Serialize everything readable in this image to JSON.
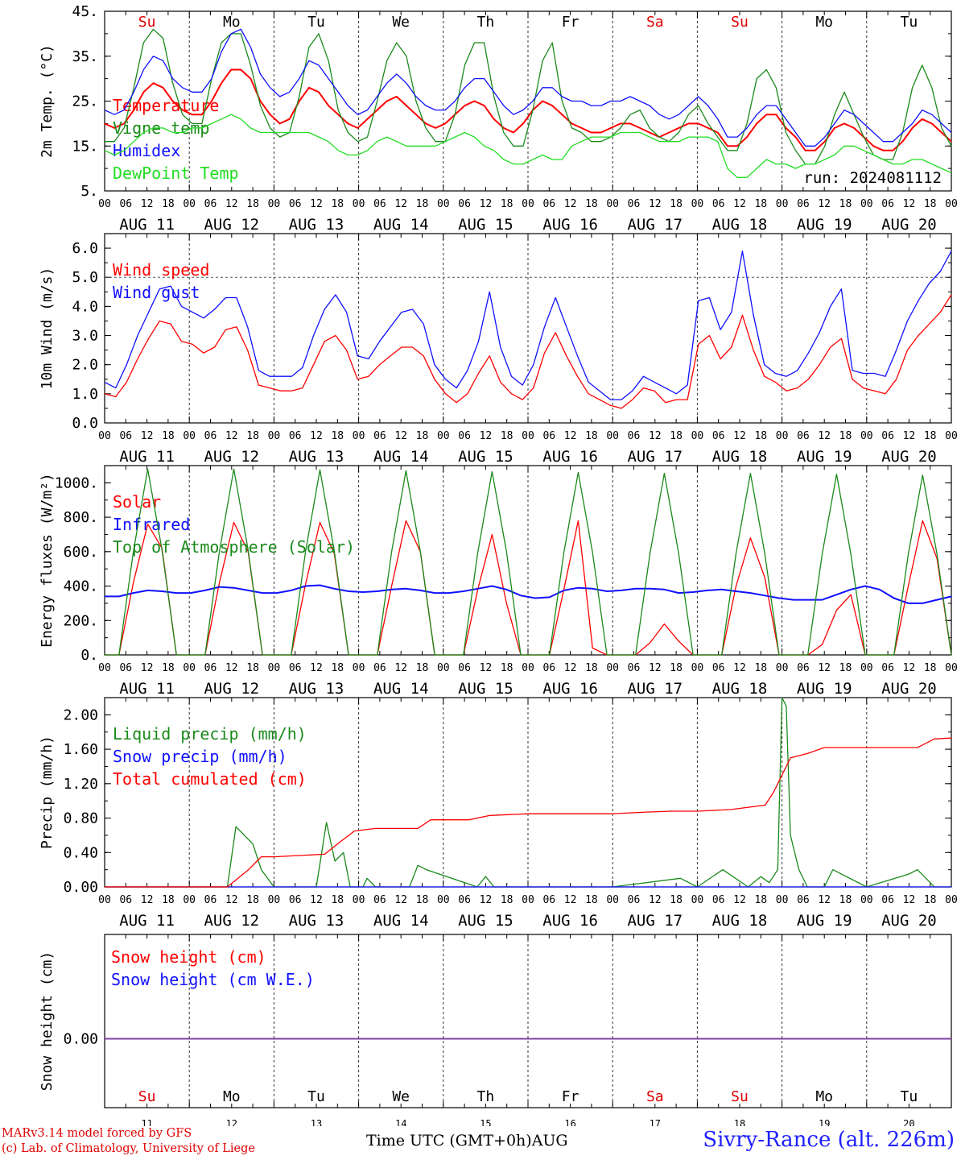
{
  "footer": {
    "model": "MARv3.14 model forced by GFS",
    "copyright": "(c) Lab. of Climatology, University of Liege",
    "axis_label": "Time UTC (GMT+0h)AUG",
    "station": "Sivry-Rance (alt. 226m)"
  },
  "days": [
    "Su",
    "Mo",
    "Tu",
    "We",
    "Th",
    "Fr",
    "Sa",
    "Su",
    "Mo",
    "Tu"
  ],
  "day_colors": [
    "#e00000",
    "#000000",
    "#000000",
    "#000000",
    "#000000",
    "#000000",
    "#e00000",
    "#e00000",
    "#000000",
    "#000000"
  ],
  "date_labels": [
    "AUG 11",
    "AUG 12",
    "AUG 13",
    "AUG 14",
    "AUG 15",
    "AUG 16",
    "AUG 17",
    "AUG 18",
    "AUG 19",
    "AUG 20"
  ],
  "day_numbers": [
    "11",
    "12",
    "13",
    "14",
    "15",
    "16",
    "17",
    "18",
    "19",
    "20"
  ],
  "hour_ticks": [
    "00",
    "06",
    "12",
    "18"
  ],
  "colors": {
    "red": "#ff0000",
    "green": "#1a8a1a",
    "blue": "#1010ff",
    "light_green": "#22dd22",
    "purple": "#8040a0"
  },
  "chart_data": [
    {
      "type": "line",
      "ylabel": "2m Temp. (°C)",
      "ylim": [
        5,
        45
      ],
      "yticks": [
        "5.",
        "15.",
        "25.",
        "35.",
        "45."
      ],
      "annotation": "run: 2024081112",
      "grid": "day separators dashed",
      "series": [
        {
          "name": "Temperature",
          "color": "red",
          "values": [
            20,
            19,
            20,
            23,
            27,
            29,
            28,
            25,
            23,
            22,
            22,
            25,
            29,
            32,
            32,
            30,
            25,
            22,
            20,
            21,
            25,
            28,
            27,
            24,
            22,
            20,
            19,
            21,
            23,
            25,
            26,
            24,
            22,
            20,
            19,
            20,
            22,
            24,
            25,
            24,
            21,
            19,
            18,
            20,
            23,
            25,
            24,
            22,
            20,
            19,
            18,
            18,
            19,
            20,
            20,
            19,
            18,
            17,
            18,
            19,
            20,
            20,
            19,
            18,
            15,
            15,
            17,
            20,
            22,
            22,
            19,
            17,
            14,
            14,
            16,
            19,
            20,
            19,
            17,
            15,
            14,
            14,
            16,
            19,
            21,
            20,
            18,
            16
          ]
        },
        {
          "name": "Vigne temp",
          "color": "green",
          "values": [
            16,
            16,
            19,
            28,
            38,
            41,
            39,
            29,
            22,
            20,
            20,
            30,
            38,
            40,
            40,
            33,
            24,
            19,
            17,
            18,
            26,
            37,
            40,
            34,
            23,
            18,
            16,
            17,
            25,
            34,
            38,
            35,
            25,
            19,
            16,
            16,
            22,
            33,
            38,
            38,
            26,
            18,
            15,
            15,
            23,
            34,
            38,
            25,
            19,
            18,
            16,
            16,
            17,
            19,
            22,
            23,
            19,
            17,
            16,
            18,
            22,
            24,
            20,
            17,
            14,
            14,
            20,
            30,
            32,
            28,
            18,
            14,
            11,
            11,
            15,
            22,
            27,
            22,
            17,
            13,
            12,
            12,
            18,
            28,
            33,
            28,
            19,
            15
          ]
        },
        {
          "name": "Humidex",
          "color": "blue",
          "values": [
            23,
            22,
            23,
            27,
            32,
            35,
            34,
            30,
            28,
            27,
            27,
            30,
            36,
            40,
            41,
            37,
            31,
            28,
            26,
            27,
            30,
            34,
            33,
            30,
            27,
            24,
            22,
            23,
            26,
            29,
            31,
            29,
            26,
            24,
            23,
            23,
            25,
            28,
            30,
            30,
            27,
            24,
            22,
            23,
            25,
            28,
            28,
            26,
            25,
            25,
            24,
            24,
            25,
            25,
            26,
            25,
            24,
            22,
            21,
            22,
            24,
            26,
            24,
            21,
            17,
            17,
            19,
            22,
            24,
            24,
            21,
            18,
            15,
            15,
            17,
            20,
            23,
            22,
            20,
            18,
            16,
            16,
            18,
            20,
            23,
            22,
            20,
            18
          ]
        },
        {
          "name": "DewPoint Temp",
          "color": "light_green",
          "values": [
            14,
            13,
            14,
            16,
            18,
            19,
            19,
            18,
            18,
            19,
            19,
            20,
            21,
            22,
            21,
            19,
            18,
            18,
            18,
            18,
            18,
            18,
            17,
            16,
            14,
            13,
            13,
            14,
            16,
            17,
            16,
            15,
            15,
            15,
            15,
            16,
            17,
            18,
            17,
            15,
            14,
            12,
            11,
            11,
            12,
            13,
            12,
            12,
            15,
            16,
            17,
            17,
            17,
            18,
            18,
            18,
            17,
            16,
            16,
            16,
            17,
            17,
            17,
            16,
            10,
            8,
            8,
            10,
            12,
            11,
            11,
            10,
            11,
            11,
            12,
            13,
            15,
            15,
            14,
            13,
            12,
            11,
            11,
            12,
            12,
            11,
            10,
            9
          ]
        }
      ]
    },
    {
      "type": "line",
      "ylabel": "10m Wind (m/s)",
      "ylim": [
        0,
        6.5
      ],
      "yticks": [
        "0.0",
        "1.0",
        "2.0",
        "3.0",
        "4.0",
        "5.0",
        "6.0"
      ],
      "reference_line": 5.0,
      "series": [
        {
          "name": "Wind speed",
          "color": "red",
          "values": [
            1.0,
            0.9,
            1.4,
            2.2,
            2.9,
            3.5,
            3.4,
            2.8,
            2.7,
            2.4,
            2.6,
            3.2,
            3.3,
            2.5,
            1.3,
            1.2,
            1.1,
            1.1,
            1.2,
            2.0,
            2.8,
            3.0,
            2.5,
            1.5,
            1.6,
            2.0,
            2.3,
            2.6,
            2.6,
            2.3,
            1.5,
            1.0,
            0.7,
            1.0,
            1.7,
            2.3,
            1.4,
            1.0,
            0.8,
            1.2,
            2.4,
            3.1,
            2.3,
            1.6,
            1.0,
            0.8,
            0.6,
            0.5,
            0.8,
            1.2,
            1.1,
            0.7,
            0.8,
            0.8,
            2.7,
            3.0,
            2.2,
            2.6,
            3.7,
            2.5,
            1.6,
            1.4,
            1.1,
            1.2,
            1.5,
            2.0,
            2.6,
            2.9,
            1.5,
            1.2,
            1.1,
            1.0,
            1.5,
            2.5,
            3.0,
            3.4,
            3.8,
            4.4
          ]
        },
        {
          "name": "Wind gust",
          "color": "blue",
          "values": [
            1.4,
            1.2,
            2.0,
            3.0,
            3.8,
            4.6,
            4.7,
            4.0,
            3.8,
            3.6,
            3.9,
            4.3,
            4.3,
            3.3,
            1.8,
            1.6,
            1.6,
            1.6,
            1.9,
            3.0,
            3.9,
            4.4,
            3.8,
            2.3,
            2.2,
            2.8,
            3.3,
            3.8,
            3.9,
            3.4,
            2.0,
            1.5,
            1.2,
            1.8,
            2.8,
            4.5,
            2.6,
            1.6,
            1.3,
            2.0,
            3.3,
            4.3,
            3.3,
            2.3,
            1.4,
            1.1,
            0.8,
            0.8,
            1.1,
            1.6,
            1.4,
            1.2,
            1.0,
            1.3,
            4.2,
            4.3,
            3.2,
            3.8,
            5.9,
            3.7,
            2.0,
            1.7,
            1.6,
            1.8,
            2.4,
            3.1,
            4.0,
            4.6,
            1.8,
            1.7,
            1.7,
            1.6,
            2.5,
            3.5,
            4.2,
            4.8,
            5.2,
            5.9
          ]
        }
      ]
    },
    {
      "type": "line",
      "ylabel": "Energy fluxes (W/m²)",
      "ylim": [
        0,
        1100
      ],
      "yticks": [
        "0.",
        "200.",
        "400.",
        "600.",
        "800.",
        "1000."
      ],
      "series": [
        {
          "name": "Solar",
          "color": "red",
          "values": [
            0,
            0,
            420,
            760,
            620,
            0,
            0,
            0,
            420,
            770,
            600,
            0,
            0,
            0,
            410,
            770,
            590,
            0,
            0,
            0,
            400,
            780,
            600,
            0,
            0,
            0,
            380,
            700,
            300,
            0,
            0,
            0,
            380,
            780,
            40,
            0,
            0,
            0,
            70,
            180,
            80,
            0,
            0,
            0,
            400,
            680,
            450,
            0,
            0,
            0,
            60,
            260,
            350,
            0,
            0,
            0,
            400,
            780,
            560,
            0
          ]
        },
        {
          "name": "Infrared",
          "color": "blue",
          "values": [
            340,
            340,
            360,
            375,
            370,
            360,
            360,
            375,
            395,
            390,
            375,
            360,
            360,
            375,
            400,
            405,
            385,
            370,
            365,
            370,
            380,
            385,
            375,
            360,
            360,
            370,
            385,
            400,
            380,
            345,
            330,
            335,
            375,
            390,
            385,
            370,
            375,
            385,
            385,
            380,
            360,
            365,
            375,
            380,
            370,
            360,
            345,
            330,
            320,
            320,
            320,
            350,
            380,
            400,
            380,
            330,
            300,
            300,
            320,
            340
          ]
        },
        {
          "name": "Top of Atmosphere (Solar)",
          "color": "green",
          "values": [
            0,
            0,
            600,
            1080,
            610,
            0,
            0,
            0,
            600,
            1080,
            610,
            0,
            0,
            0,
            600,
            1075,
            605,
            0,
            0,
            0,
            600,
            1070,
            600,
            0,
            0,
            0,
            595,
            1065,
            600,
            0,
            0,
            0,
            595,
            1060,
            595,
            0,
            0,
            0,
            590,
            1055,
            590,
            0,
            0,
            0,
            590,
            1055,
            590,
            0,
            0,
            0,
            585,
            1050,
            585,
            0,
            0,
            0,
            585,
            1045,
            585,
            0
          ]
        }
      ]
    },
    {
      "type": "line",
      "ylabel": "Precip (mm/h)",
      "ylim": [
        0,
        2.2
      ],
      "yticks": [
        "0.00",
        "0.40",
        "0.80",
        "1.20",
        "1.60",
        "2.00"
      ],
      "series": [
        {
          "name": "Liquid precip (mm/h)",
          "color": "green",
          "x": [
            0,
            1,
            1.45,
            1.55,
            1.65,
            1.75,
            1.85,
            2.0,
            2.5,
            2.62,
            2.72,
            2.82,
            2.9,
            3.05,
            3.1,
            3.2,
            3.6,
            3.7,
            3.8,
            4.4,
            4.5,
            4.6,
            5.0,
            6.0,
            6.8,
            7.0,
            7.3,
            7.6,
            7.75,
            7.85,
            7.95,
            8.0,
            8.05,
            8.1,
            8.2,
            8.3,
            8.5,
            8.6,
            9.0,
            9.5,
            9.6,
            9.7,
            9.8,
            9.9,
            10.0
          ],
          "values": [
            0,
            0,
            0,
            0.7,
            0.6,
            0.5,
            0.2,
            0,
            0,
            0.75,
            0.3,
            0.4,
            0,
            0,
            0.1,
            0,
            0,
            0.25,
            0.2,
            0,
            0.12,
            0,
            0,
            0,
            0.1,
            0,
            0.2,
            0,
            0.12,
            0.05,
            0.2,
            2.2,
            2.1,
            0.6,
            0.2,
            0,
            0,
            0.2,
            0,
            0.15,
            0.2,
            0.1,
            0,
            0,
            0
          ]
        },
        {
          "name": "Snow precip (mm/h)",
          "color": "blue",
          "x": [
            0,
            10
          ],
          "values": [
            0,
            0
          ]
        },
        {
          "name": "Total cumulated (cm)",
          "color": "red",
          "x": [
            0,
            1.45,
            1.7,
            1.85,
            2.0,
            2.6,
            2.75,
            2.95,
            3.2,
            3.7,
            3.85,
            4.3,
            4.55,
            5.0,
            6.0,
            6.4,
            6.7,
            7.0,
            7.4,
            7.8,
            7.9,
            8.1,
            8.3,
            8.5,
            9.0,
            9.6,
            9.8,
            10.0
          ],
          "values": [
            0,
            0,
            0.2,
            0.35,
            0.35,
            0.38,
            0.5,
            0.65,
            0.68,
            0.68,
            0.78,
            0.78,
            0.83,
            0.85,
            0.85,
            0.87,
            0.88,
            0.88,
            0.9,
            0.95,
            1.1,
            1.5,
            1.55,
            1.62,
            1.62,
            1.62,
            1.72,
            1.73
          ]
        }
      ]
    },
    {
      "type": "line",
      "ylabel": "Snow height (cm)",
      "yticks": [
        "0.00"
      ],
      "series": [
        {
          "name": "Snow height (cm)",
          "color": "red",
          "values": [
            0,
            0
          ]
        },
        {
          "name": "Snow height (cm W.E.)",
          "color": "blue",
          "values": [
            0,
            0
          ]
        }
      ]
    }
  ]
}
